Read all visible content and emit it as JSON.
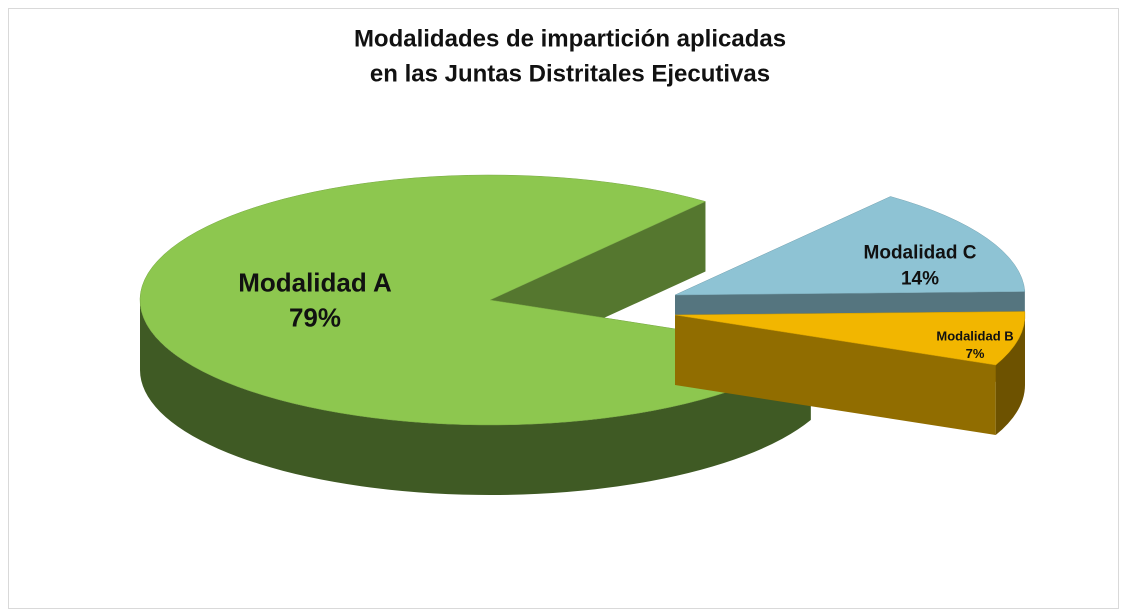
{
  "chart_data": {
    "type": "pie",
    "title": [
      "Modalidades de impartición aplicadas",
      "en las Juntas Distritales Ejecutivas"
    ],
    "categories": [
      "Modalidad A",
      "Modalidad B",
      "Modalidad C"
    ],
    "values": [
      79,
      7,
      14
    ],
    "value_labels": [
      "79%",
      "7%",
      "14%"
    ],
    "colors": [
      "#8dc74f",
      "#f2b600",
      "#8ec3d4"
    ]
  }
}
